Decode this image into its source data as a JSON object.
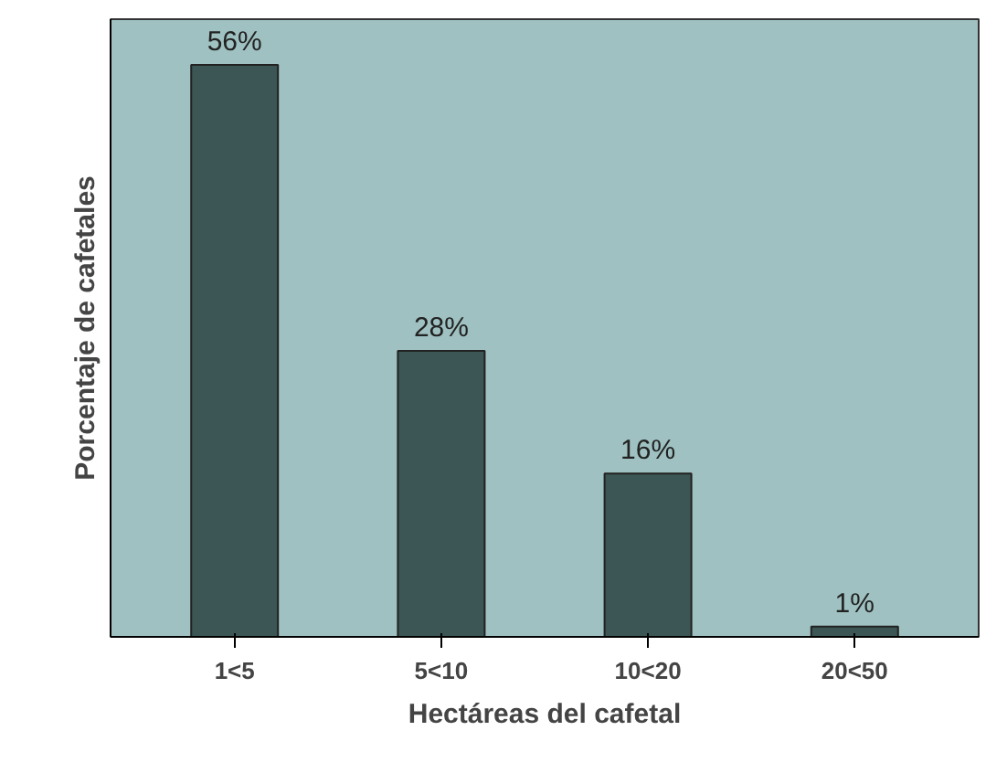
{
  "chart_data": {
    "type": "bar",
    "xlabel": "Hectáreas del cafetal",
    "ylabel": "Porcentaje de cafetales",
    "categories": [
      "1<5",
      "5<10",
      "10<20",
      "20<50"
    ],
    "values": [
      56,
      28,
      16,
      1
    ],
    "value_labels": [
      "56%",
      "28%",
      "16%",
      "1%"
    ],
    "color": "#3b5654",
    "grid": false
  }
}
